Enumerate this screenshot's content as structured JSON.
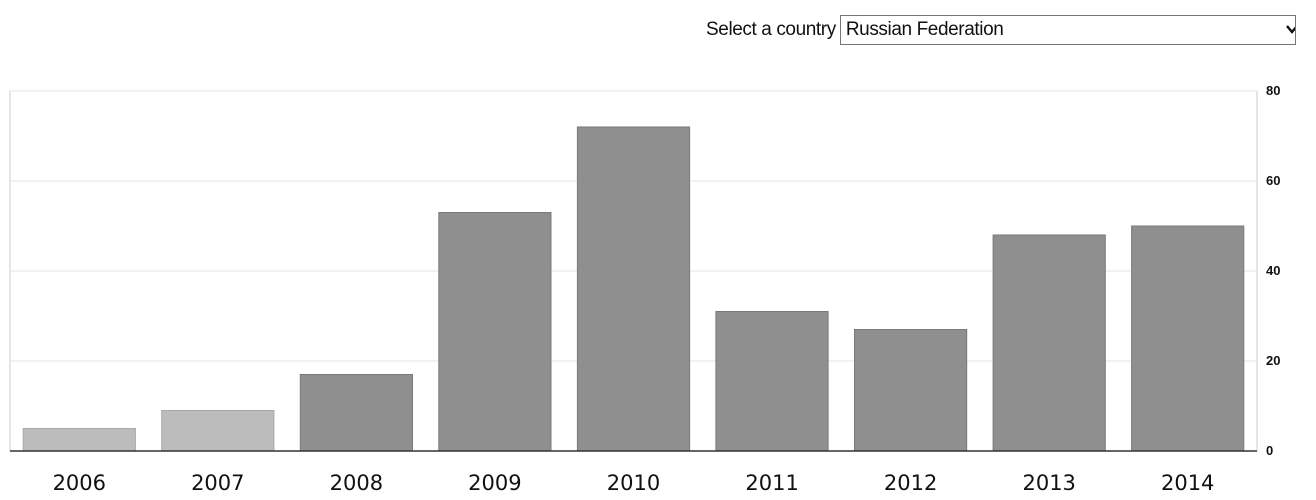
{
  "selector": {
    "label": "Select a country",
    "selected": "Russian Federation",
    "icon": "chevron-down-icon"
  },
  "colors": {
    "bar_primary": "#8f8f8f",
    "bar_faded": "#bcbcbc",
    "gridline": "#e6e6e6",
    "axis": "#333333",
    "frame": "#cccccc"
  },
  "chart_data": {
    "type": "bar",
    "categories": [
      "2006",
      "2007",
      "2008",
      "2009",
      "2010",
      "2011",
      "2012",
      "2013",
      "2014"
    ],
    "values": [
      5,
      9,
      17,
      53,
      72,
      31,
      27,
      48,
      50
    ],
    "faded": [
      true,
      true,
      false,
      false,
      false,
      false,
      false,
      false,
      false
    ],
    "ylim": [
      0,
      80
    ],
    "yticks": [
      0,
      20,
      40,
      60,
      80
    ],
    "yaxis_position": "right",
    "grid": true,
    "title": "",
    "xlabel": "",
    "ylabel": ""
  }
}
